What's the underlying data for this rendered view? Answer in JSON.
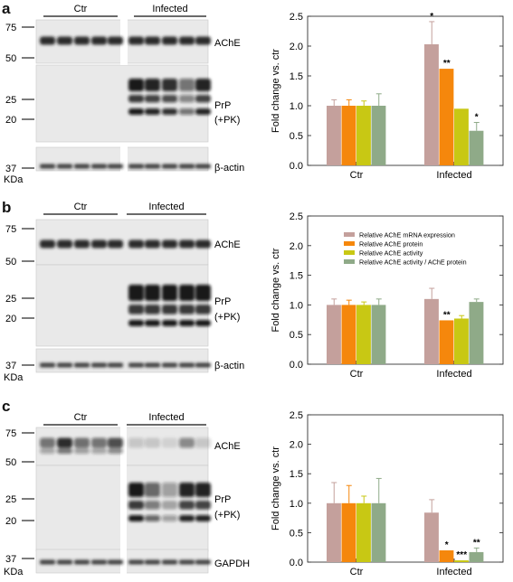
{
  "colors": {
    "mrna": "#c4a09c",
    "protein": "#f5870c",
    "activity": "#c8c814",
    "ratio": "#8faa88",
    "axis": "#333333"
  },
  "panels": [
    {
      "letter": "a",
      "blot": {
        "groups": [
          "Ctr",
          "Infected"
        ],
        "bands": [
          {
            "label": "AChE",
            "markers": [
              "75",
              "50"
            ]
          },
          {
            "label": "PrP\n(+PK)",
            "label_lines": [
              "PrP",
              "(+PK)"
            ],
            "markers": [
              "25",
              "20"
            ]
          },
          {
            "label": "β-actin",
            "markers": [
              "37"
            ]
          }
        ],
        "unit": "KDa"
      },
      "chart_data": {
        "type": "bar",
        "ylabel": "Fold change vs. ctr",
        "ylim": [
          0,
          2.5
        ],
        "yticks": [
          "0.0",
          "0.5",
          "1.0",
          "1.5",
          "2.0",
          "2.5"
        ],
        "categories": [
          "Ctr",
          "Infected"
        ],
        "series": [
          {
            "values": [
              1.0,
              2.03
            ],
            "errors": [
              0.1,
              0.38
            ],
            "sig": [
              "",
              "*"
            ]
          },
          {
            "values": [
              1.0,
              1.62
            ],
            "errors": [
              0.1,
              0.0
            ],
            "sig": [
              "",
              "**"
            ]
          },
          {
            "values": [
              1.0,
              0.95
            ],
            "errors": [
              0.08,
              0.0
            ],
            "sig": [
              "",
              ""
            ]
          },
          {
            "values": [
              1.0,
              0.58
            ],
            "errors": [
              0.2,
              0.14
            ],
            "sig": [
              "",
              "*"
            ]
          }
        ],
        "legend": null
      }
    },
    {
      "letter": "b",
      "blot": {
        "groups": [
          "Ctr",
          "Infected"
        ],
        "bands": [
          {
            "label": "AChE",
            "markers": [
              "75",
              "50"
            ]
          },
          {
            "label_lines": [
              "PrP",
              "(+PK)"
            ],
            "markers": [
              "25",
              "20"
            ]
          },
          {
            "label": "β-actin",
            "markers": [
              "37"
            ]
          }
        ],
        "unit": "KDa"
      },
      "chart_data": {
        "type": "bar",
        "ylabel": "Fold change vs. ctr",
        "ylim": [
          0,
          2.5
        ],
        "yticks": [
          "0.0",
          "0.5",
          "1.0",
          "1.5",
          "2.0",
          "2.5"
        ],
        "categories": [
          "Ctr",
          "Infected"
        ],
        "series": [
          {
            "name": "Relative AChE mRNA expression",
            "values": [
              1.0,
              1.1
            ],
            "errors": [
              0.1,
              0.18
            ],
            "sig": [
              "",
              ""
            ]
          },
          {
            "name": "Relative AChE protein",
            "values": [
              1.0,
              0.74
            ],
            "errors": [
              0.08,
              0.0
            ],
            "sig": [
              "",
              "**"
            ]
          },
          {
            "name": "Relative AChE activity",
            "values": [
              1.0,
              0.77
            ],
            "errors": [
              0.05,
              0.05
            ],
            "sig": [
              "",
              ""
            ]
          },
          {
            "name": "Relative AChE activity / AChE protein",
            "values": [
              1.0,
              1.05
            ],
            "errors": [
              0.1,
              0.05
            ],
            "sig": [
              "",
              ""
            ]
          }
        ],
        "legend": "top-center"
      }
    },
    {
      "letter": "c",
      "blot": {
        "groups": [
          "Ctr",
          "Infected"
        ],
        "bands": [
          {
            "label": "AChE",
            "markers": [
              "75",
              "50"
            ]
          },
          {
            "label_lines": [
              "PrP",
              "(+PK)"
            ],
            "markers": [
              "25",
              "20"
            ]
          },
          {
            "label": "GAPDH",
            "markers": [
              "37"
            ]
          }
        ],
        "unit": "KDa"
      },
      "chart_data": {
        "type": "bar",
        "ylabel": "Fold change vs. ctr",
        "ylim": [
          0,
          2.5
        ],
        "yticks": [
          "0.0",
          "0.5",
          "1.0",
          "1.5",
          "2.0",
          "2.5"
        ],
        "categories": [
          "Ctr",
          "Infected"
        ],
        "series": [
          {
            "values": [
              1.0,
              0.84
            ],
            "errors": [
              0.35,
              0.22
            ],
            "sig": [
              "",
              ""
            ]
          },
          {
            "values": [
              1.0,
              0.2
            ],
            "errors": [
              0.3,
              0.0
            ],
            "sig": [
              "",
              "*"
            ]
          },
          {
            "values": [
              1.0,
              0.03
            ],
            "errors": [
              0.12,
              0.0
            ],
            "sig": [
              "",
              "***"
            ]
          },
          {
            "values": [
              1.0,
              0.17
            ],
            "errors": [
              0.42,
              0.07
            ],
            "sig": [
              "",
              "**"
            ]
          }
        ],
        "legend": null
      }
    }
  ]
}
